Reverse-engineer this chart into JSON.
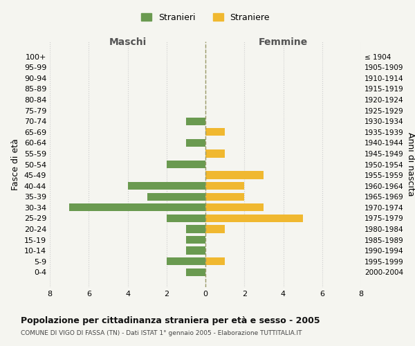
{
  "age_groups": [
    "100+",
    "95-99",
    "90-94",
    "85-89",
    "80-84",
    "75-79",
    "70-74",
    "65-69",
    "60-64",
    "55-59",
    "50-54",
    "45-49",
    "40-44",
    "35-39",
    "30-34",
    "25-29",
    "20-24",
    "15-19",
    "10-14",
    "5-9",
    "0-4"
  ],
  "birth_years": [
    "≤ 1904",
    "1905-1909",
    "1910-1914",
    "1915-1919",
    "1920-1924",
    "1925-1929",
    "1930-1934",
    "1935-1939",
    "1940-1944",
    "1945-1949",
    "1950-1954",
    "1955-1959",
    "1960-1964",
    "1965-1969",
    "1970-1974",
    "1975-1979",
    "1980-1984",
    "1985-1989",
    "1990-1994",
    "1995-1999",
    "2000-2004"
  ],
  "maschi": [
    0,
    0,
    0,
    0,
    0,
    0,
    1,
    0,
    1,
    0,
    2,
    0,
    4,
    3,
    7,
    2,
    1,
    1,
    1,
    2,
    1
  ],
  "femmine": [
    0,
    0,
    0,
    0,
    0,
    0,
    0,
    1,
    0,
    1,
    0,
    3,
    2,
    2,
    3,
    5,
    1,
    0,
    0,
    1,
    0
  ],
  "male_color": "#6a9a50",
  "female_color": "#f0b830",
  "background_color": "#f5f5f0",
  "grid_color": "#cccccc",
  "bar_height": 0.72,
  "xlim": 8,
  "title": "Popolazione per cittadinanza straniera per età e sesso - 2005",
  "subtitle": "COMUNE DI VIGO DI FASSA (TN) - Dati ISTAT 1° gennaio 2005 - Elaborazione TUTTITALIA.IT",
  "ylabel_left": "Fasce di età",
  "ylabel_right": "Anni di nascita",
  "legend_male": "Stranieri",
  "legend_female": "Straniere",
  "maschi_header": "Maschi",
  "femmine_header": "Femmine"
}
